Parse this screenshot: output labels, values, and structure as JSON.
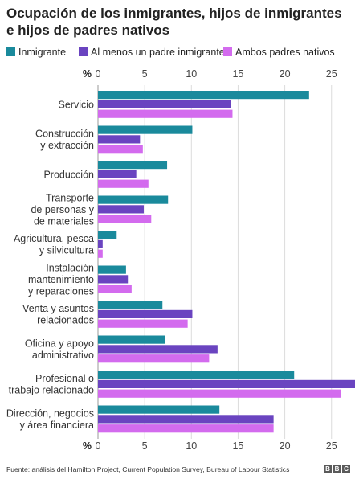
{
  "title": "Ocupación de los inmigrantes, hijos de inmigrantes e hijos de padres nativos",
  "source": "Fuente: análisis del Hamilton Project, Current Population Survey, Bureau of Labour Statistics",
  "logo": {
    "text": "BBC",
    "letters": [
      "B",
      "B",
      "C"
    ]
  },
  "chart_data": {
    "type": "bar",
    "orientation": "horizontal",
    "unit_label": "%",
    "xlim": [
      0,
      27
    ],
    "ticks": [
      0,
      5,
      10,
      15,
      20,
      25
    ],
    "grid": true,
    "legend_position": "top",
    "categories": [
      [
        "Servicio"
      ],
      [
        "Construcción",
        "y extracción"
      ],
      [
        "Producción"
      ],
      [
        "Transporte",
        "de personas y",
        "de materiales"
      ],
      [
        "Agricultura, pesca",
        "y silvicultura"
      ],
      [
        "Instalación",
        "mantenimiento",
        "y reparaciones"
      ],
      [
        "Venta y asuntos",
        "relacionados"
      ],
      [
        "Oficina y apoyo",
        "administrativo"
      ],
      [
        "Profesional o",
        "trabajo relacionado"
      ],
      [
        "Dirección, negocios",
        "y área financiera"
      ]
    ],
    "series": [
      {
        "name": "Inmigrante",
        "color": "#1a8a9c",
        "values": [
          22.6,
          10.1,
          7.4,
          7.5,
          2.0,
          3.0,
          6.9,
          7.2,
          21.0,
          13.0
        ]
      },
      {
        "name": "Al menos un padre inmigrante",
        "color": "#6a44c0",
        "values": [
          14.2,
          4.5,
          4.1,
          4.9,
          0.5,
          3.2,
          10.1,
          12.8,
          27.6,
          18.8
        ]
      },
      {
        "name": "Ambos padres nativos",
        "color": "#d36bee",
        "values": [
          14.4,
          4.8,
          5.4,
          5.7,
          0.5,
          3.6,
          9.6,
          11.9,
          26.0,
          18.8
        ]
      }
    ]
  }
}
